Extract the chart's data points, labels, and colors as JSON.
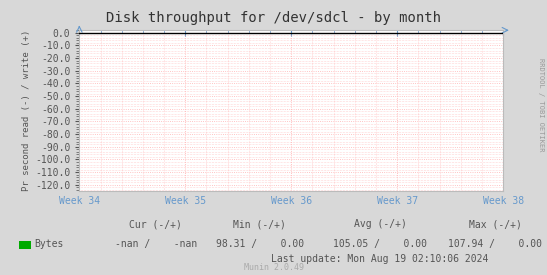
{
  "title": "Disk throughput for /dev/sdcl - by month",
  "ylabel": "Pr second read (-) / write (+)",
  "yticks": [
    0.0,
    -10.0,
    -20.0,
    -30.0,
    -40.0,
    -50.0,
    -60.0,
    -70.0,
    -80.0,
    -90.0,
    -100.0,
    -110.0,
    -120.0
  ],
  "ylim": [
    -125,
    2
  ],
  "xlim_labels": [
    "Week 34",
    "Week 35",
    "Week 36",
    "Week 37",
    "Week 38"
  ],
  "grid_color": "#ffb0b0",
  "bg_color": "#d8d8d8",
  "plot_bg_color": "#ffffff",
  "border_color": "#aaaaaa",
  "title_color": "#333333",
  "axis_color": "#555555",
  "right_label": "RRDTOOL / TOBI OETIKER",
  "legend_label": "Bytes",
  "legend_color": "#00aa00",
  "cur_label": "Cur (-/+)",
  "min_label": "Min (-/+)",
  "avg_label": "Avg (-/+)",
  "max_label": "Max (-/+)",
  "cur_val": "-nan /    -nan",
  "min_val": "98.31 /    0.00",
  "avg_val": "105.05 /    0.00",
  "max_val": "107.94 /    0.00",
  "last_update": "Last update: Mon Aug 19 02:10:06 2024",
  "munin_label": "Munin 2.0.49",
  "arrow_color": "#6699cc",
  "tick_color": "#6699cc"
}
